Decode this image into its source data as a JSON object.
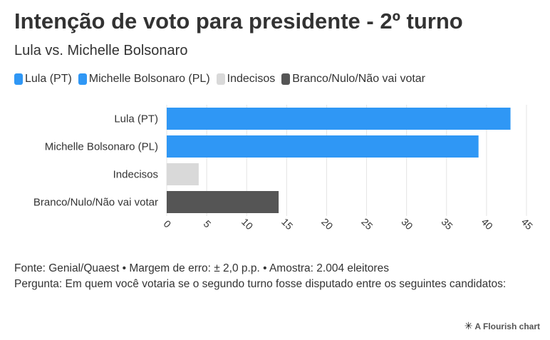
{
  "header": {
    "title": "Intenção de voto para presidente - 2º turno",
    "subtitle": "Lula vs. Michelle Bolsonaro"
  },
  "legend": [
    {
      "label": "Lula (PT)",
      "color": "#2f97f5"
    },
    {
      "label": "Michelle Bolsonaro (PL)",
      "color": "#2f97f5"
    },
    {
      "label": "Indecisos",
      "color": "#d9d9d9"
    },
    {
      "label": "Branco/Nulo/Não vai votar",
      "color": "#555555"
    }
  ],
  "chart_data": {
    "type": "bar",
    "orientation": "horizontal",
    "categories": [
      "Lula (PT)",
      "Michelle Bolsonaro (PL)",
      "Indecisos",
      "Branco/Nulo/Não vai votar"
    ],
    "values": [
      43,
      39,
      4,
      14
    ],
    "colors": [
      "#2f97f5",
      "#2f97f5",
      "#d9d9d9",
      "#555555"
    ],
    "xlim": [
      0,
      45
    ],
    "xticks": [
      0,
      5,
      10,
      15,
      20,
      25,
      30,
      35,
      40,
      45
    ],
    "grid": true,
    "legend_position": "top-left"
  },
  "footer": {
    "source": "Fonte: Genial/Quaest • Margem de erro: ± 2,0 p.p. • Amostra: 2.004 eleitores",
    "question": "Pergunta: Em quem você votaria se o segundo turno fosse disputado entre os seguintes candidatos:"
  },
  "branding": {
    "label": "A Flourish chart",
    "icon": "flourish-star-icon"
  }
}
